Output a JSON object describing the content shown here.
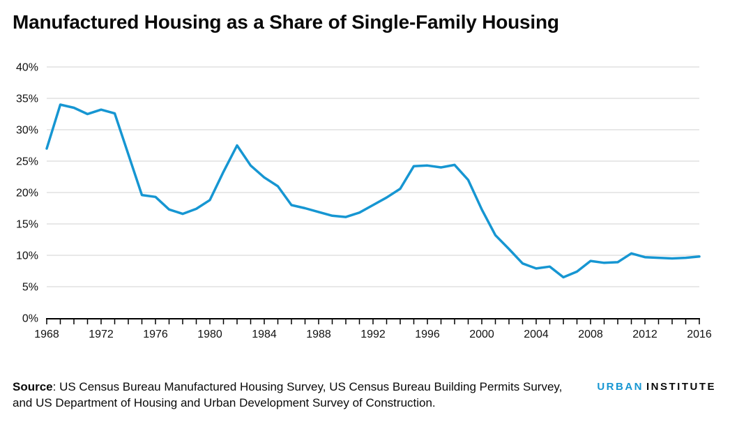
{
  "title": "Manufactured Housing as a Share of Single-Family Housing",
  "chart_data": {
    "type": "line",
    "title": "Manufactured Housing as a Share of Single-Family Housing",
    "series_name": "Manufactured housing share of single-family housing",
    "x": [
      1968,
      1969,
      1970,
      1971,
      1972,
      1973,
      1974,
      1975,
      1976,
      1977,
      1978,
      1979,
      1980,
      1981,
      1982,
      1983,
      1984,
      1985,
      1986,
      1987,
      1988,
      1989,
      1990,
      1991,
      1992,
      1993,
      1994,
      1995,
      1996,
      1997,
      1998,
      1999,
      2000,
      2001,
      2002,
      2003,
      2004,
      2005,
      2006,
      2007,
      2008,
      2009,
      2010,
      2011,
      2012,
      2013,
      2014,
      2015,
      2016
    ],
    "values": [
      27.0,
      34.0,
      33.5,
      32.5,
      33.2,
      32.6,
      26.1,
      19.6,
      19.3,
      17.3,
      16.6,
      17.4,
      18.8,
      23.3,
      27.5,
      24.3,
      22.4,
      21.0,
      18.0,
      17.5,
      16.9,
      16.3,
      16.1,
      16.8,
      18.0,
      19.2,
      20.6,
      24.2,
      24.3,
      24.0,
      24.4,
      22.0,
      17.3,
      13.2,
      11.0,
      8.7,
      7.9,
      8.2,
      6.5,
      7.4,
      9.1,
      8.8,
      8.9,
      10.3,
      9.7,
      9.6,
      9.5,
      9.6,
      9.8
    ],
    "xlabel": "",
    "ylabel": "",
    "ylim": [
      0,
      40
    ],
    "y_tick_step": 5,
    "y_tick_suffix": "%",
    "x_tick_labels": [
      1968,
      1972,
      1976,
      1980,
      1984,
      1988,
      1992,
      1996,
      2000,
      2004,
      2008,
      2012,
      2016
    ],
    "grid": true,
    "legend": "none",
    "line_color": "#1696d2",
    "grid_color": "#d9d9d9",
    "axis_color": "#000000",
    "tick_label_color": "#111111"
  },
  "footer": {
    "source_label": "Source",
    "source_rest": ": US Census Bureau Manufactured Housing Survey, US Census Bureau Building Permits Survey, and US Department of Housing and Urban Development Survey of Construction."
  },
  "logo": {
    "part1": "URBAN",
    "part2": "INSTITUTE",
    "part1_color": "#1696d2",
    "part2_color": "#0a0a0a"
  }
}
